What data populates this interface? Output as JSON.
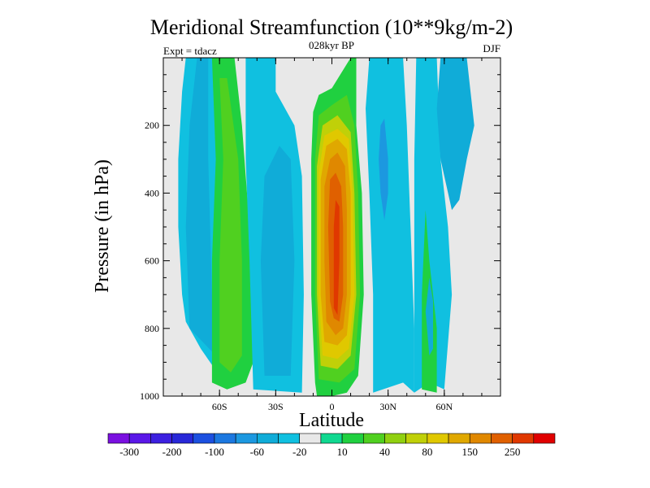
{
  "chart_data": {
    "type": "filled-contour",
    "title": "Meridional Streamfunction (10**9kg/m-2)",
    "subtitle_center": "028kyr BP",
    "subtitle_left": "Expt = tdacz",
    "subtitle_right": "DJF",
    "xlabel": "Latitude",
    "ylabel": "Pressure (in hPa)",
    "xlim": [
      -90,
      90
    ],
    "ylim": [
      1000,
      0
    ],
    "x_ticks": [
      {
        "value": -60,
        "label": "60S"
      },
      {
        "value": -30,
        "label": "30S"
      },
      {
        "value": 0,
        "label": "0"
      },
      {
        "value": 30,
        "label": "30N"
      },
      {
        "value": 60,
        "label": "60N"
      }
    ],
    "y_ticks": [
      {
        "value": 200,
        "label": "200"
      },
      {
        "value": 400,
        "label": "400"
      },
      {
        "value": 600,
        "label": "600"
      },
      {
        "value": 800,
        "label": "800"
      },
      {
        "value": 1000,
        "label": "1000"
      }
    ],
    "colorbar": {
      "colors": [
        "#7a10e0",
        "#5a18e8",
        "#3c20e0",
        "#2828d8",
        "#1c50e0",
        "#1c78e0",
        "#1c98e0",
        "#10acd8",
        "#10c0e0",
        "#e8e8e8",
        "#10d890",
        "#20d040",
        "#50d020",
        "#90d010",
        "#c0d008",
        "#e0c800",
        "#e0a800",
        "#e08800",
        "#e06000",
        "#e03800",
        "#e00000"
      ],
      "labels": [
        "-300",
        "-200",
        "-100",
        "-60",
        "-20",
        "10",
        "40",
        "80",
        "150",
        "250"
      ],
      "label_boundary_index": [
        1,
        3,
        5,
        7,
        9,
        11,
        13,
        15,
        17,
        19
      ]
    },
    "regions": [
      {
        "name": "central-hadley-cell",
        "points": [
          [
            -8,
            1000
          ],
          [
            -9,
            960
          ],
          [
            -11,
            700
          ],
          [
            -11,
            300
          ],
          [
            -10,
            160
          ],
          [
            -7,
            110
          ],
          [
            0,
            90
          ],
          [
            10,
            0
          ],
          [
            13,
            0
          ],
          [
            13,
            200
          ],
          [
            16,
            400
          ],
          [
            17,
            700
          ],
          [
            14,
            940
          ],
          [
            8,
            990
          ],
          [
            0,
            1000
          ]
        ],
        "level": 11
      },
      {
        "name": "hadley-40",
        "points": [
          [
            -7,
            950
          ],
          [
            -9,
            700
          ],
          [
            -9,
            300
          ],
          [
            -7,
            170
          ],
          [
            0,
            140
          ],
          [
            8,
            110
          ],
          [
            12,
            200
          ],
          [
            14,
            400
          ],
          [
            15,
            700
          ],
          [
            12,
            920
          ],
          [
            4,
            960
          ]
        ],
        "level": 12
      },
      {
        "name": "hadley-80",
        "points": [
          [
            -6,
            910
          ],
          [
            -8,
            700
          ],
          [
            -8,
            320
          ],
          [
            -5,
            200
          ],
          [
            3,
            170
          ],
          [
            10,
            220
          ],
          [
            12,
            400
          ],
          [
            13,
            700
          ],
          [
            10,
            880
          ],
          [
            3,
            920
          ]
        ],
        "level": 14
      },
      {
        "name": "hadley-110",
        "points": [
          [
            -5,
            880
          ],
          [
            -7,
            700
          ],
          [
            -7,
            340
          ],
          [
            -4,
            230
          ],
          [
            3,
            210
          ],
          [
            9,
            240
          ],
          [
            11,
            400
          ],
          [
            12,
            700
          ],
          [
            9,
            860
          ],
          [
            3,
            890
          ]
        ],
        "level": 15
      },
      {
        "name": "hadley-150",
        "points": [
          [
            -4,
            840
          ],
          [
            -6,
            700
          ],
          [
            -6,
            360
          ],
          [
            -3,
            260
          ],
          [
            3,
            240
          ],
          [
            8,
            270
          ],
          [
            10,
            400
          ],
          [
            10,
            700
          ],
          [
            8,
            820
          ],
          [
            3,
            850
          ]
        ],
        "level": 16
      },
      {
        "name": "hadley-200",
        "points": [
          [
            -3,
            780
          ],
          [
            -4,
            600
          ],
          [
            -4,
            380
          ],
          [
            -1,
            300
          ],
          [
            3,
            280
          ],
          [
            7,
            320
          ],
          [
            8,
            450
          ],
          [
            8,
            700
          ],
          [
            6,
            800
          ],
          [
            2,
            820
          ]
        ],
        "level": 17
      },
      {
        "name": "hadley-250",
        "points": [
          [
            -1,
            720
          ],
          [
            -2,
            500
          ],
          [
            -1,
            360
          ],
          [
            2,
            340
          ],
          [
            5,
            380
          ],
          [
            6,
            500
          ],
          [
            6,
            700
          ],
          [
            4,
            780
          ],
          [
            1,
            770
          ]
        ],
        "level": 18
      },
      {
        "name": "hadley-core",
        "points": [
          [
            1,
            740
          ],
          [
            1,
            500
          ],
          [
            2,
            420
          ],
          [
            4,
            440
          ],
          [
            4,
            600
          ],
          [
            3,
            760
          ]
        ],
        "level": 19
      },
      {
        "name": "south-blue-band",
        "points": [
          [
            -80,
            700
          ],
          [
            -82,
            500
          ],
          [
            -82,
            300
          ],
          [
            -80,
            100
          ],
          [
            -78,
            0
          ],
          [
            -62,
            0
          ],
          [
            -62,
            200
          ],
          [
            -60,
            500
          ],
          [
            -58,
            900
          ],
          [
            -54,
            960
          ],
          [
            -60,
            940
          ],
          [
            -70,
            860
          ],
          [
            -78,
            780
          ]
        ],
        "level": 8
      },
      {
        "name": "south-blue-inner",
        "points": [
          [
            -76,
            800
          ],
          [
            -78,
            500
          ],
          [
            -76,
            200
          ],
          [
            -72,
            0
          ],
          [
            -66,
            0
          ],
          [
            -66,
            300
          ],
          [
            -64,
            700
          ],
          [
            -62,
            880
          ]
        ],
        "level": 7
      },
      {
        "name": "south-green-band",
        "points": [
          [
            -64,
            960
          ],
          [
            -64,
            600
          ],
          [
            -62,
            300
          ],
          [
            -64,
            0
          ],
          [
            -52,
            0
          ],
          [
            -48,
            200
          ],
          [
            -44,
            500
          ],
          [
            -42,
            900
          ],
          [
            -46,
            960
          ],
          [
            -56,
            980
          ]
        ],
        "level": 11
      },
      {
        "name": "south-green-inner",
        "points": [
          [
            -60,
            900
          ],
          [
            -60,
            600
          ],
          [
            -58,
            300
          ],
          [
            -60,
            60
          ],
          [
            -56,
            60
          ],
          [
            -50,
            300
          ],
          [
            -48,
            600
          ],
          [
            -48,
            880
          ],
          [
            -54,
            930
          ]
        ],
        "level": 12
      },
      {
        "name": "mid-blue-band",
        "points": [
          [
            -42,
            980
          ],
          [
            -44,
            600
          ],
          [
            -46,
            300
          ],
          [
            -46,
            0
          ],
          [
            -30,
            0
          ],
          [
            -30,
            100
          ],
          [
            -20,
            200
          ],
          [
            -16,
            350
          ],
          [
            -15,
            700
          ],
          [
            -16,
            990
          ]
        ],
        "level": 8
      },
      {
        "name": "mid-blue-inner",
        "points": [
          [
            -36,
            940
          ],
          [
            -38,
            600
          ],
          [
            -36,
            350
          ],
          [
            -28,
            260
          ],
          [
            -22,
            300
          ],
          [
            -20,
            600
          ],
          [
            -22,
            940
          ]
        ],
        "level": 7
      },
      {
        "name": "north-blue-band",
        "points": [
          [
            22,
            990
          ],
          [
            22,
            700
          ],
          [
            20,
            400
          ],
          [
            18,
            150
          ],
          [
            20,
            0
          ],
          [
            38,
            0
          ],
          [
            40,
            200
          ],
          [
            42,
            500
          ],
          [
            44,
            800
          ],
          [
            44,
            990
          ],
          [
            38,
            960
          ]
        ],
        "level": 8
      },
      {
        "name": "north-blue-inner",
        "points": [
          [
            26,
            400
          ],
          [
            25,
            300
          ],
          [
            26,
            200
          ],
          [
            28,
            180
          ],
          [
            30,
            300
          ],
          [
            30,
            400
          ],
          [
            28,
            480
          ]
        ],
        "level": 6
      },
      {
        "name": "north-right-band",
        "points": [
          [
            44,
            990
          ],
          [
            44,
            700
          ],
          [
            44,
            300
          ],
          [
            45,
            0
          ],
          [
            56,
            0
          ],
          [
            58,
            300
          ],
          [
            62,
            500
          ],
          [
            64,
            700
          ],
          [
            60,
            980
          ],
          [
            52,
            960
          ]
        ],
        "level": 8
      },
      {
        "name": "north-green-strip",
        "points": [
          [
            48,
            980
          ],
          [
            48,
            700
          ],
          [
            50,
            450
          ],
          [
            52,
            600
          ],
          [
            56,
            800
          ],
          [
            56,
            990
          ]
        ],
        "level": 11
      },
      {
        "name": "north-small-blue",
        "points": [
          [
            50,
            750
          ],
          [
            52,
            650
          ],
          [
            54,
            720
          ],
          [
            54,
            860
          ],
          [
            52,
            880
          ]
        ],
        "level": 7
      },
      {
        "name": "far-north-band",
        "points": [
          [
            58,
            300
          ],
          [
            56,
            150
          ],
          [
            58,
            0
          ],
          [
            72,
            0
          ],
          [
            74,
            100
          ],
          [
            76,
            200
          ],
          [
            72,
            300
          ],
          [
            68,
            420
          ],
          [
            64,
            450
          ]
        ],
        "level": 7
      }
    ]
  }
}
